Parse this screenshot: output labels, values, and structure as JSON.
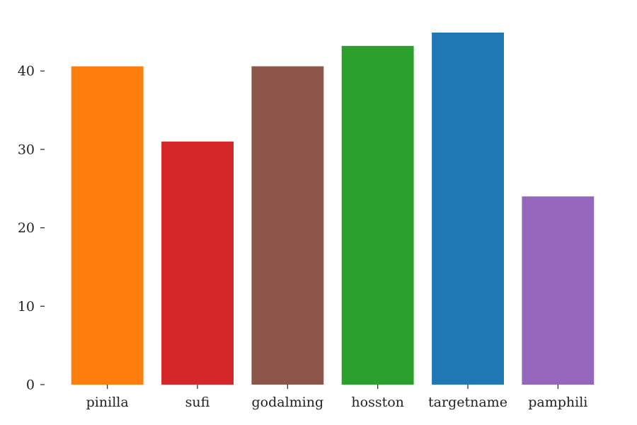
{
  "chart_data": {
    "type": "bar",
    "title": "",
    "xlabel": "",
    "ylabel": "",
    "categories": [
      "pinilla",
      "sufi",
      "godalming",
      "hosston",
      "targetname",
      "pamphili"
    ],
    "values": [
      40.6,
      31.0,
      40.6,
      43.2,
      44.9,
      24.0
    ],
    "colors": [
      "#ff7f0e",
      "#d62728",
      "#8c564b",
      "#2ca02c",
      "#1f77b4",
      "#9467bd"
    ],
    "ylim": [
      0,
      46
    ],
    "yticks": [
      0,
      10,
      20,
      30,
      40
    ],
    "ytick_labels": [
      "0",
      "10",
      "20",
      "30",
      "40"
    ],
    "grid": false,
    "legend": "none"
  }
}
